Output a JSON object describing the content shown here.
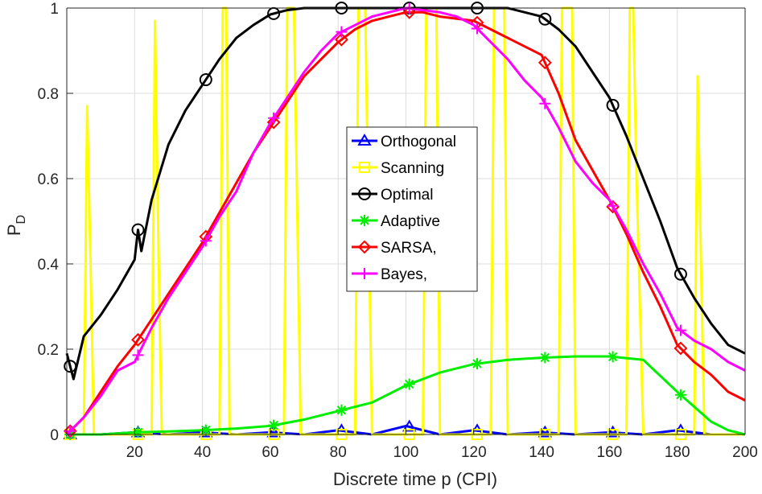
{
  "chart_data": {
    "type": "line",
    "xlabel": "Discrete time p (CPI)",
    "ylabel": "P",
    "ylabel_sub": "D",
    "xlim": [
      0,
      200
    ],
    "ylim": [
      0,
      1
    ],
    "x_ticks": [
      20,
      40,
      60,
      80,
      100,
      120,
      140,
      160,
      180,
      200
    ],
    "x_tick_labels": [
      "20",
      "40",
      "60",
      "80",
      "100",
      "120",
      "140",
      "160",
      "180",
      "200"
    ],
    "y_ticks": [
      0,
      0.2,
      0.4,
      0.6,
      0.8,
      1
    ],
    "y_tick_labels": [
      "0",
      "0.2",
      "0.4",
      "0.6",
      "0.8",
      "1"
    ],
    "grid": true,
    "legend_position": "center",
    "series": [
      {
        "name": "Orthogonal",
        "color": "#0000ff",
        "marker": "triangle",
        "x": [
          0,
          10,
          20,
          30,
          40,
          50,
          60,
          70,
          80,
          90,
          100,
          110,
          120,
          130,
          140,
          150,
          160,
          170,
          180,
          190,
          200
        ],
        "y": [
          0,
          0,
          0.005,
          0,
          0.005,
          0,
          0.005,
          0,
          0.01,
          0,
          0.02,
          0,
          0.01,
          0,
          0.005,
          0,
          0.005,
          0,
          0.01,
          0,
          0
        ]
      },
      {
        "name": "Scanning",
        "color": "#ffff00",
        "marker": "square",
        "x": [
          0,
          5,
          6,
          7,
          8,
          25,
          26,
          27,
          28,
          45,
          46,
          47,
          48,
          64,
          65,
          66,
          67,
          68,
          69,
          85,
          86,
          87,
          88,
          89,
          90,
          105,
          106,
          107,
          108,
          109,
          110,
          125,
          126,
          127,
          128,
          129,
          130,
          145,
          146,
          147,
          148,
          149,
          150,
          165,
          166,
          167,
          168,
          169,
          170,
          185,
          186,
          187,
          188,
          200
        ],
        "y": [
          0,
          0,
          0.77,
          0.4,
          0,
          0,
          0.97,
          0.45,
          0,
          0,
          1,
          1,
          0,
          0,
          1,
          1,
          1,
          0.5,
          0,
          0,
          1,
          1,
          1,
          0.5,
          0,
          0,
          1,
          1,
          1,
          1,
          0,
          0,
          1,
          1,
          1,
          1,
          0,
          0,
          1,
          1,
          1,
          1,
          0,
          0,
          1,
          1,
          0.6,
          0.3,
          0,
          0,
          0.84,
          0.4,
          0,
          0
        ]
      },
      {
        "name": "Optimal",
        "color": "#000000",
        "marker": "circle",
        "x": [
          0,
          2,
          5,
          10,
          15,
          20,
          21,
          22,
          25,
          30,
          35,
          40,
          45,
          50,
          55,
          60,
          65,
          70,
          75,
          80,
          90,
          100,
          110,
          120,
          130,
          140,
          145,
          150,
          155,
          160,
          165,
          170,
          175,
          180,
          185,
          190,
          195,
          200
        ],
        "y": [
          0.19,
          0.13,
          0.23,
          0.28,
          0.34,
          0.41,
          0.48,
          0.43,
          0.55,
          0.68,
          0.76,
          0.82,
          0.88,
          0.93,
          0.96,
          0.985,
          0.995,
          1,
          1,
          1,
          1,
          1,
          1,
          1,
          1,
          0.98,
          0.95,
          0.91,
          0.85,
          0.79,
          0.7,
          0.6,
          0.5,
          0.39,
          0.32,
          0.26,
          0.21,
          0.19
        ]
      },
      {
        "name": "Adaptive",
        "color": "#00ee00",
        "marker": "star",
        "x": [
          0,
          10,
          20,
          30,
          40,
          50,
          60,
          70,
          80,
          90,
          100,
          110,
          120,
          130,
          140,
          150,
          160,
          170,
          180,
          190,
          195,
          200
        ],
        "y": [
          0,
          0,
          0.005,
          0.007,
          0.01,
          0.014,
          0.02,
          0.035,
          0.055,
          0.075,
          0.115,
          0.145,
          0.165,
          0.175,
          0.18,
          0.183,
          0.183,
          0.175,
          0.1,
          0.03,
          0.01,
          0
        ]
      },
      {
        "name": "SARSA,",
        "color": "#ff0000",
        "marker": "diamond",
        "x": [
          0,
          5,
          10,
          15,
          20,
          25,
          30,
          35,
          40,
          45,
          50,
          55,
          60,
          65,
          70,
          75,
          80,
          85,
          90,
          95,
          100,
          105,
          110,
          115,
          120,
          125,
          130,
          135,
          140,
          145,
          150,
          155,
          160,
          165,
          170,
          175,
          180,
          185,
          190,
          195,
          200
        ],
        "y": [
          0,
          0.04,
          0.1,
          0.16,
          0.21,
          0.27,
          0.33,
          0.39,
          0.45,
          0.52,
          0.59,
          0.66,
          0.72,
          0.78,
          0.84,
          0.88,
          0.92,
          0.95,
          0.97,
          0.98,
          0.99,
          0.99,
          0.98,
          0.975,
          0.97,
          0.95,
          0.93,
          0.91,
          0.89,
          0.8,
          0.69,
          0.62,
          0.55,
          0.47,
          0.38,
          0.3,
          0.21,
          0.17,
          0.14,
          0.1,
          0.08
        ]
      },
      {
        "name": "Bayes,",
        "color": "#ff00ff",
        "marker": "plus",
        "x": [
          0,
          5,
          10,
          15,
          20,
          25,
          30,
          35,
          40,
          45,
          50,
          55,
          60,
          65,
          70,
          75,
          80,
          85,
          90,
          95,
          100,
          105,
          110,
          115,
          120,
          125,
          130,
          135,
          140,
          145,
          150,
          155,
          160,
          165,
          170,
          175,
          180,
          185,
          190,
          195,
          200
        ],
        "y": [
          0,
          0.04,
          0.09,
          0.15,
          0.17,
          0.25,
          0.32,
          0.38,
          0.44,
          0.51,
          0.57,
          0.66,
          0.73,
          0.79,
          0.85,
          0.9,
          0.94,
          0.96,
          0.98,
          0.99,
          1,
          0.995,
          0.99,
          0.98,
          0.96,
          0.92,
          0.88,
          0.83,
          0.79,
          0.72,
          0.64,
          0.59,
          0.55,
          0.48,
          0.4,
          0.33,
          0.25,
          0.22,
          0.2,
          0.17,
          0.15
        ]
      }
    ]
  }
}
